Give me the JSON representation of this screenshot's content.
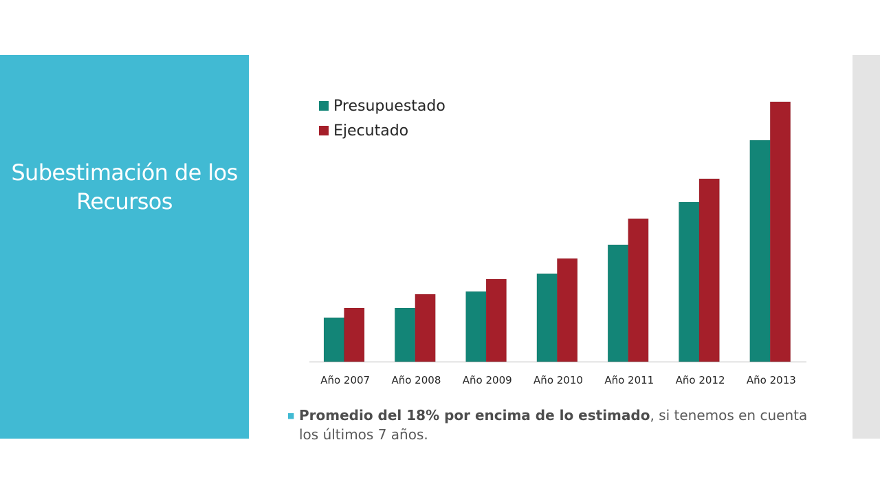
{
  "slide": {
    "title": "Subestimación de los Recursos",
    "note_bold": "Promedio del 18% por encima de lo estimado",
    "note_rest": ", si tenemos en cuenta los últimos 7 años."
  },
  "colors": {
    "side_panel": "#41bad3",
    "presupuestado": "#138577",
    "ejecutado": "#a51f2a",
    "right_strip": "#e4e4e4"
  },
  "chart_data": {
    "type": "bar",
    "categories": [
      "Año 2007",
      "Año 2008",
      "Año 2009",
      "Año 2010",
      "Año 2011",
      "Año 2012",
      "Año 2013"
    ],
    "series": [
      {
        "name": "Presupuestado",
        "values": [
          16,
          19.5,
          25.5,
          32,
          42.5,
          58,
          80.5
        ]
      },
      {
        "name": "Ejecutado",
        "values": [
          19.5,
          24.5,
          30,
          37.5,
          52,
          66.5,
          94.5
        ]
      }
    ],
    "ylim": [
      0,
      100
    ],
    "legend": "top-left",
    "grid": false,
    "title": "",
    "xlabel": "",
    "ylabel": ""
  }
}
